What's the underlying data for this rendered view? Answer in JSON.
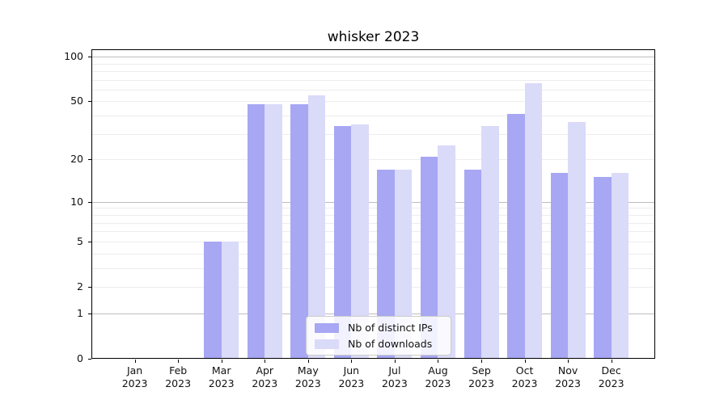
{
  "title": "whisker 2023",
  "colors": {
    "bar_distinct_ips": "#a7a7f4",
    "bar_downloads": "#dadaf9",
    "grid_major": "#bdbdbd",
    "grid_minor": "#ececec",
    "axis": "#000000",
    "text": "#111111",
    "legend_bg": "rgba(255,255,255,0.85)",
    "legend_border": "#cccccc"
  },
  "chart_data": {
    "type": "bar",
    "title": "whisker 2023",
    "y_scale": "log1p",
    "grid": true,
    "legend_position": "lower center",
    "categories": [
      {
        "month": "Jan",
        "year": "2023"
      },
      {
        "month": "Feb",
        "year": "2023"
      },
      {
        "month": "Mar",
        "year": "2023"
      },
      {
        "month": "Apr",
        "year": "2023"
      },
      {
        "month": "May",
        "year": "2023"
      },
      {
        "month": "Jun",
        "year": "2023"
      },
      {
        "month": "Jul",
        "year": "2023"
      },
      {
        "month": "Aug",
        "year": "2023"
      },
      {
        "month": "Sep",
        "year": "2023"
      },
      {
        "month": "Oct",
        "year": "2023"
      },
      {
        "month": "Nov",
        "year": "2023"
      },
      {
        "month": "Dec",
        "year": "2023"
      }
    ],
    "series": [
      {
        "name": "Nb of distinct IPs",
        "color": "#a7a7f4",
        "values": [
          0,
          0,
          5,
          48,
          48,
          34,
          17,
          21,
          17,
          41,
          16,
          15
        ]
      },
      {
        "name": "Nb of downloads",
        "color": "#dadaf9",
        "values": [
          0,
          0,
          5,
          48,
          55,
          35,
          17,
          25,
          34,
          66,
          36,
          16
        ]
      }
    ],
    "ylim": [
      0,
      112
    ],
    "yticks": [
      0,
      1,
      2,
      5,
      10,
      20,
      50,
      100
    ],
    "major_gridlines": [
      1,
      10,
      100
    ],
    "minor_gridlines": [
      2,
      3,
      4,
      5,
      6,
      7,
      8,
      9,
      20,
      30,
      40,
      50,
      60,
      70,
      80,
      90
    ]
  }
}
